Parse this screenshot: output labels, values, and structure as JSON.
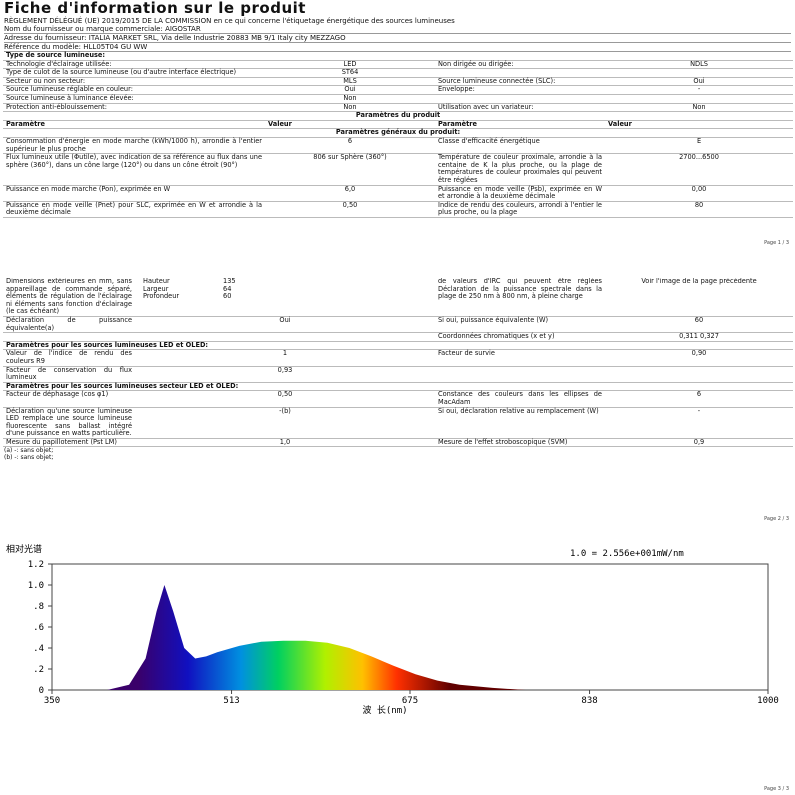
{
  "header": {
    "title": "Fiche d'information sur le produit",
    "regulation": "RÈGLEMENT DÉLÉGUÉ (UE) 2019/2015 DE LA COMMISSION en ce qui concerne l'étiquetage énergétique des sources lumineuses",
    "supplier_name": "Nom du fournisseur ou marque commerciale: AIGOSTAR",
    "supplier_address": "Adresse du fournisseur: ITALIA MARKET SRL, Via delle Industrie 20883 MB 9/1 Italy city MEZZAGO",
    "model": "Référence du modèle: HLL05T04 GU WW"
  },
  "page1": {
    "rows": [
      {
        "section": "Type de source lumineuse:"
      },
      {
        "cells": [
          "Technologie d'éclairage utilisée:",
          "LED",
          "Non dirigée ou dirigée:",
          "NDLS"
        ]
      },
      {
        "cells": [
          "Type de culot de la source lumineuse (ou d'autre interface électrique)",
          "ST64",
          null,
          null
        ]
      },
      {
        "cells": [
          "Secteur ou non secteur:",
          "MLS",
          "Source lumineuse connectée (SLC):",
          "Oui"
        ]
      },
      {
        "cells": [
          "Source lumineuse réglable en couleur:",
          "Oui",
          "Enveloppe:",
          "-"
        ]
      },
      {
        "cells": [
          "Source lumineuse à luminance élevée:",
          "Non",
          null,
          null
        ]
      },
      {
        "cells": [
          "Protection anti-éblouissement:",
          "Non",
          "Utilisation avec un variateur:",
          "Non"
        ]
      },
      {
        "section": "Paramètres du produit",
        "center": true
      },
      {
        "cells": [
          "Paramètre",
          "Valeur",
          "Paramètre",
          "Valeur"
        ],
        "head": true
      },
      {
        "section": "Paramètres généraux du produit:",
        "center": true
      },
      {
        "cells": [
          "Consommation d'énergie en mode marche (kWh/1000 h), arrondie à l'entier supérieur le plus proche",
          "6",
          "Classe d'efficacité énergétique",
          "E"
        ]
      },
      {
        "cells": [
          "Flux lumineux utile (Φutile), avec indication de sa référence au flux dans une sphère (360°), dans un cône large (120°) ou dans un cône étroit (90°)",
          "806 sur Sphère (360°)",
          "Température de couleur proximale, arrondie à la centaine de K la plus proche, ou la plage de températures de couleur proximales qui peuvent être réglées",
          "2700...6500"
        ]
      },
      {
        "cells": [
          "Puissance en mode marche (Pon), exprimée en W",
          "6,0",
          "Puissance en mode veille (Psb), exprimée en W et arrondie à la deuxième décimale",
          "0,00"
        ]
      },
      {
        "cells": [
          "Puissance en mode veille (Pnet) pour SLC, exprimée en W et arrondie à la deuxième décimale",
          "0,50",
          "Indice de rendu des couleurs, arrondi à l'entier le plus proche, ou la plage",
          "80"
        ]
      }
    ],
    "footer": "Page 1 / 3"
  },
  "page2": {
    "rows": [
      {
        "cells": [
          "Dimensions extérieures en mm, sans appareillage de commande séparé, éléments de régulation de l'éclairage ni éléments sans fonction d'éclairage (le cas échéant)",
          null,
          "de valeurs d'IRC qui peuvent être réglées Déclaration de la puissance spectrale dans la plage de 250 nm à 800 nm, à pleine charge",
          "Voir l'image de la page précédente"
        ],
        "dimensions": [
          [
            "Hauteur",
            "135"
          ],
          [
            "Largeur",
            "64"
          ],
          [
            "Profondeur",
            "60"
          ]
        ]
      },
      {
        "cells": [
          "Déclaration de puissance équivalente(a)",
          "Oui",
          "Si oui, puissance équivalente (W)",
          "60"
        ]
      },
      {
        "cells": [
          null,
          null,
          "Coordonnées chromatiques (x et y)",
          "0,311 0,327"
        ]
      },
      {
        "section": "Paramètres pour les sources lumineuses LED et OLED:"
      },
      {
        "cells": [
          "Valeur de l'indice de rendu des couleurs R9",
          "1",
          "Facteur de survie",
          "0,90"
        ]
      },
      {
        "cells": [
          "Facteur de conservation du flux lumineux",
          "0,93",
          null,
          null
        ]
      },
      {
        "section": "Paramètres pour les sources lumineuses secteur LED et OLED:"
      },
      {
        "cells": [
          "Facteur de déphasage (cos φ1)",
          "0,50",
          "Constance des couleurs dans les ellipses de MacAdam",
          "6"
        ]
      },
      {
        "cells": [
          "Déclaration qu'une source lumineuse LED remplace une source lumineuse fluorescente sans ballast intégré d'une puissance en watts particulière.",
          "-(b)",
          "Si oui, déclaration relative au remplacement (W)",
          "-"
        ]
      },
      {
        "cells": [
          "Mesure du papillotement (Pst LM)",
          "1,0",
          "Mesure de l'effet stroboscopique (SVM)",
          "0,9"
        ]
      }
    ],
    "notes": [
      "(a) -: sans objet;",
      "(b) -: sans objet;"
    ],
    "footer": "Page 2 / 3"
  },
  "spectrum": {
    "type": "area",
    "title": "相对光谱",
    "scale_note": "1.0 = 2.556e+001mW/nm",
    "x_label": "波 长(nm)",
    "x": [
      400,
      420,
      435,
      445,
      452,
      460,
      470,
      480,
      490,
      500,
      520,
      540,
      560,
      580,
      600,
      620,
      640,
      660,
      680,
      700,
      720,
      750,
      780
    ],
    "values": [
      0,
      0.05,
      0.3,
      0.75,
      1.0,
      0.75,
      0.4,
      0.3,
      0.32,
      0.36,
      0.42,
      0.46,
      0.47,
      0.47,
      0.45,
      0.4,
      0.32,
      0.23,
      0.15,
      0.09,
      0.05,
      0.02,
      0
    ],
    "xlim": [
      350,
      1000
    ],
    "xticks": [
      350,
      513,
      675,
      838,
      1000
    ],
    "ylim": [
      0,
      1.2
    ],
    "yticks": [
      {
        "value": 0,
        "label": "0"
      },
      {
        "value": 0.2,
        "label": ".2"
      },
      {
        "value": 0.4,
        "label": ".4"
      },
      {
        "value": 0.6,
        "label": ".6"
      },
      {
        "value": 0.8,
        "label": ".8"
      },
      {
        "value": 1.0,
        "label": "1.0"
      },
      {
        "value": 1.2,
        "label": "1.2"
      }
    ]
  },
  "page3": {
    "footer": "Page 3 / 3"
  }
}
